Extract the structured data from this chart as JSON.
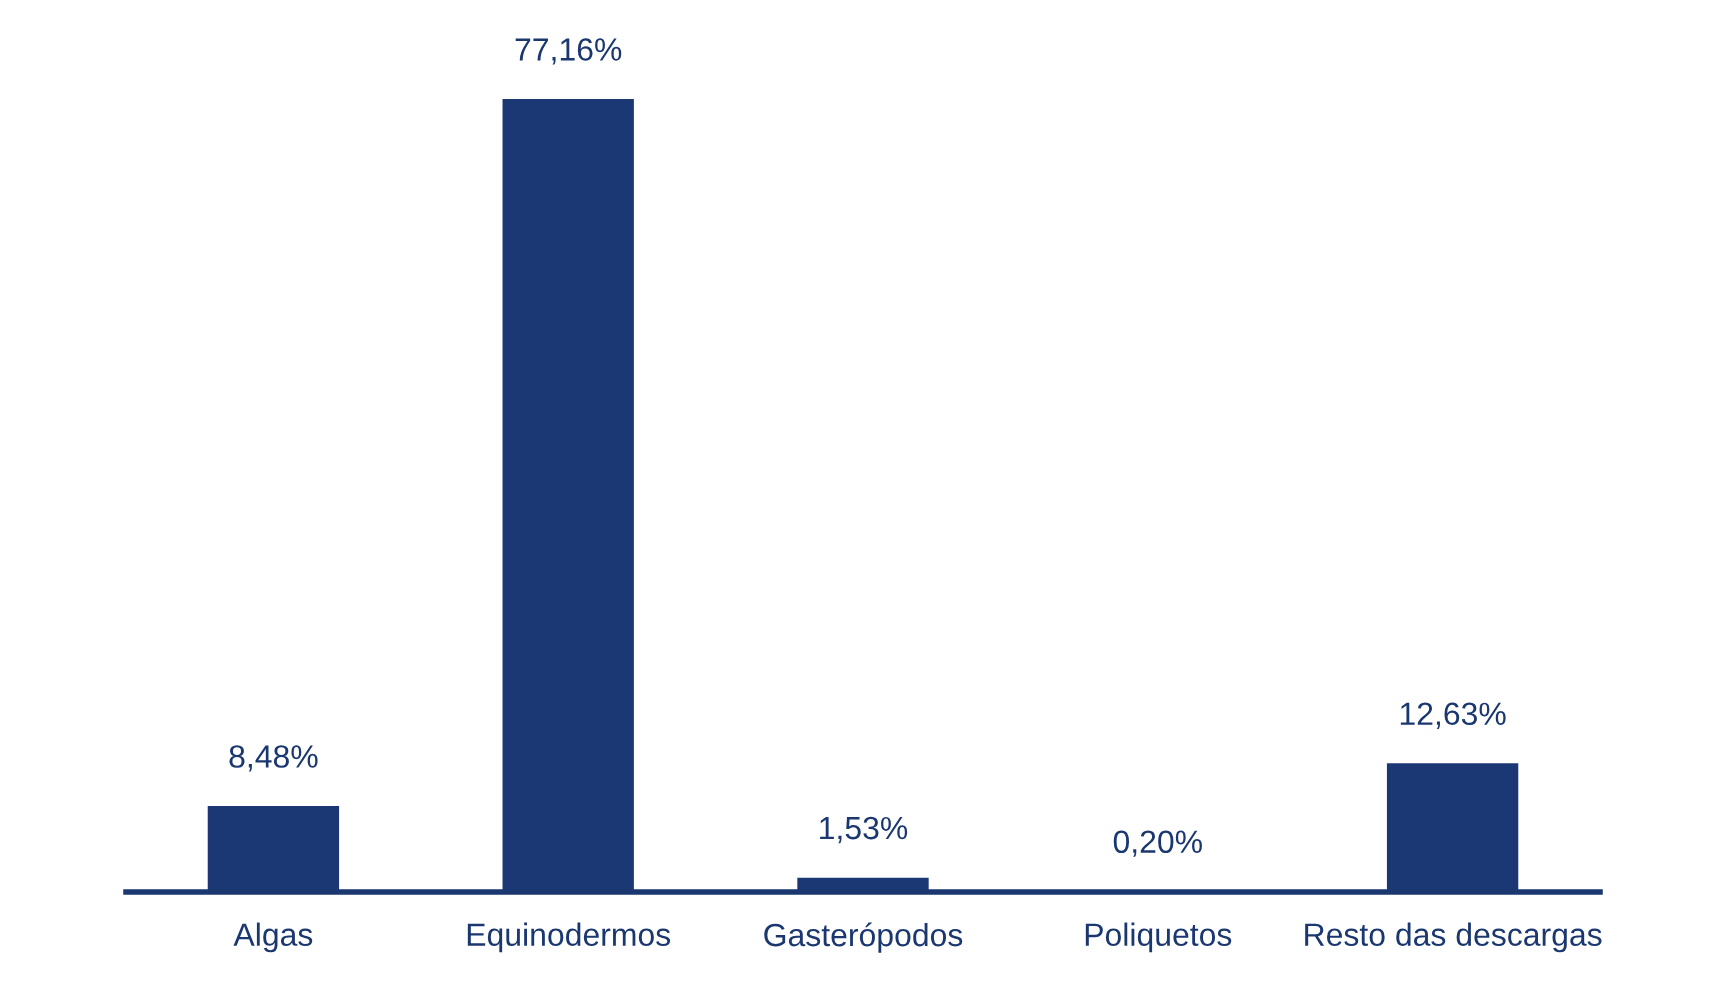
{
  "chart_data": {
    "type": "bar",
    "categories": [
      "Algas",
      "Equinodermos",
      "Gasterópodos",
      "Poliquetos",
      "Resto das descargas"
    ],
    "values": [
      8.48,
      77.16,
      1.53,
      0.2,
      12.63
    ],
    "value_labels": [
      "8,48%",
      "77,16%",
      "1,53%",
      "0,20%",
      "12,63%"
    ],
    "color": "#1c3874",
    "tick_labels": "x"
  }
}
